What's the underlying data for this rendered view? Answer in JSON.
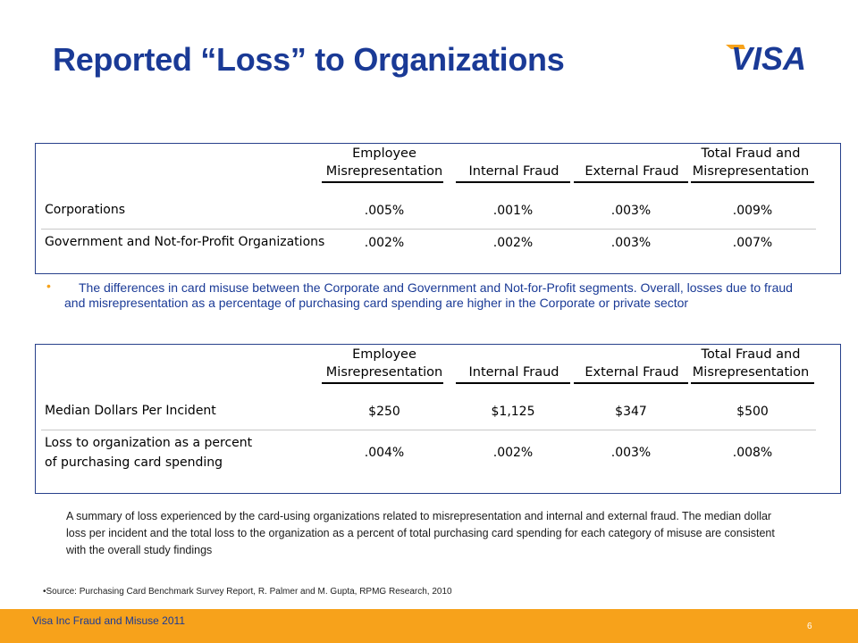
{
  "slide": {
    "title": "Reported “Loss” to Organizations",
    "logo_text": "VISA"
  },
  "table1": {
    "headers": [
      [
        "Employee",
        "Misrepresentation"
      ],
      [
        "Internal Fraud"
      ],
      [
        "External Fraud"
      ],
      [
        "Total Fraud and",
        "Misrepresentation"
      ]
    ],
    "rows": [
      {
        "label": "Corporations",
        "values": [
          ".005%",
          ".001%",
          ".003%",
          ".009%"
        ]
      },
      {
        "label": "Government and Not-for-Profit Organizations",
        "values": [
          ".002%",
          ".002%",
          ".003%",
          ".007%"
        ]
      }
    ]
  },
  "bullet_text": "The differences in card misuse between the Corporate and Government and Not-for-Profit segments. Overall, losses due to fraud and misrepresentation as a percentage of purchasing card spending are higher in the Corporate or private sector",
  "table2": {
    "headers": [
      [
        "Employee",
        "Misrepresentation"
      ],
      [
        "Internal Fraud"
      ],
      [
        "External Fraud"
      ],
      [
        "Total Fraud and",
        "Misrepresentation"
      ]
    ],
    "rows": [
      {
        "label": "Median Dollars Per Incident",
        "values": [
          "$250",
          "$1,125",
          "$347",
          "$500"
        ]
      },
      {
        "label": "Loss to organization as a percent of purchasing card spending",
        "values": [
          ".004%",
          ".002%",
          ".003%",
          ".008%"
        ]
      }
    ]
  },
  "summary_text": "A summary of loss experienced by the card-using organizations related to misrepresentation and internal and external fraud. The median dollar loss per incident and the total loss to the organization as a percent of total purchasing card spending for each category of misuse are consistent with the overall study findings",
  "source_text": "•Source: Purchasing Card Benchmark Survey Report, R. Palmer and M. Gupta, RPMG Research, 2010",
  "footer": {
    "label": "Visa Inc Fraud and Misuse 2011",
    "page_number": "6"
  },
  "colors": {
    "title": "#1a3a96",
    "accent": "#f7a21b",
    "border": "#27408b"
  }
}
